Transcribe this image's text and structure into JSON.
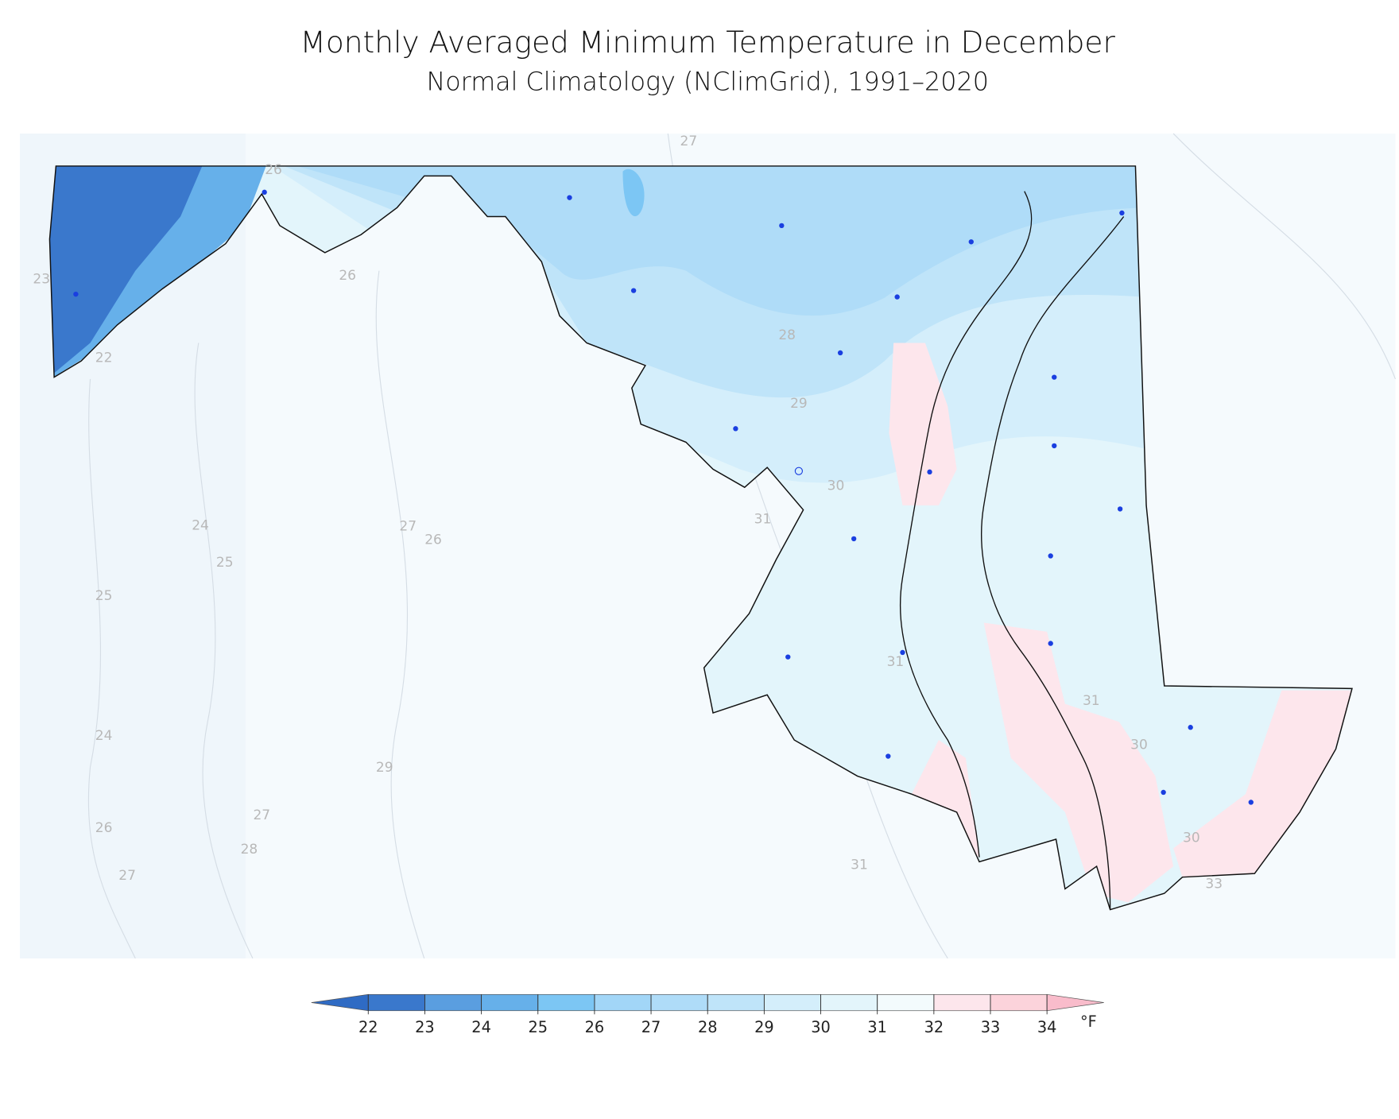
{
  "title": "Monthly Averaged Minimum Temperature in December",
  "subtitle": "Normal Climatology (NClimGrid), 1991–2020",
  "contour_labels": [
    27,
    26,
    23,
    26,
    22,
    28,
    29,
    30,
    31,
    24,
    27,
    26,
    25,
    25,
    31,
    31,
    24,
    29,
    30,
    27,
    26,
    28,
    30,
    31,
    27,
    33
  ],
  "legend": {
    "clim": [
      22,
      34
    ],
    "ticks": [
      22,
      23,
      24,
      25,
      26,
      27,
      28,
      29,
      30,
      31,
      32,
      33,
      34
    ],
    "unit": "°F",
    "colors": [
      "#2f6bc4",
      "#3a78cc",
      "#5a9ee0",
      "#66b0ea",
      "#7cc6f4",
      "#a2d6f7",
      "#afdcf8",
      "#bfe4f9",
      "#d4eefb",
      "#e3f5fb",
      "#f3fbfd",
      "#fde6ec",
      "#fcd3db",
      "#f9bccb"
    ]
  }
}
